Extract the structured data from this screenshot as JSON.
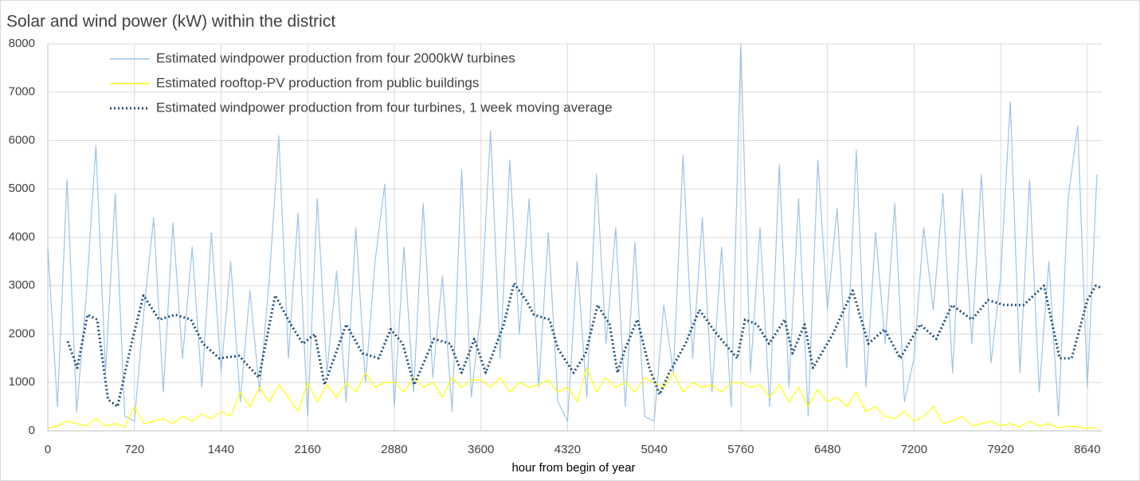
{
  "chart_data": {
    "type": "line",
    "title": "Solar and wind power (kW) within the district",
    "x_label": "hour from begin of year",
    "xlim": [
      0,
      8760
    ],
    "xticks": [
      0,
      720,
      1440,
      2160,
      2880,
      3600,
      4320,
      5040,
      5760,
      6480,
      7200,
      7920,
      8640
    ],
    "ylim": [
      0,
      8000
    ],
    "yticks": [
      0,
      1000,
      2000,
      3000,
      4000,
      5000,
      6000,
      7000,
      8000
    ],
    "grid": true,
    "legend": "upper left",
    "series": [
      {
        "name": "Estimated windpower production from four 2000kW turbines",
        "color": "#9dc3e6",
        "style": "solid",
        "x": [
          0,
          80,
          160,
          240,
          320,
          400,
          480,
          560,
          640,
          720,
          800,
          880,
          960,
          1040,
          1120,
          1200,
          1280,
          1360,
          1440,
          1520,
          1600,
          1680,
          1760,
          1840,
          1920,
          2000,
          2080,
          2160,
          2240,
          2320,
          2400,
          2480,
          2560,
          2640,
          2720,
          2800,
          2880,
          2960,
          3040,
          3120,
          3200,
          3280,
          3360,
          3440,
          3520,
          3600,
          3680,
          3760,
          3840,
          3920,
          4000,
          4080,
          4160,
          4240,
          4320,
          4400,
          4480,
          4560,
          4640,
          4720,
          4800,
          4880,
          4960,
          5040,
          5120,
          5200,
          5280,
          5360,
          5440,
          5520,
          5600,
          5680,
          5760,
          5840,
          5920,
          6000,
          6080,
          6160,
          6240,
          6320,
          6400,
          6480,
          6560,
          6640,
          6720,
          6800,
          6880,
          6960,
          7040,
          7120,
          7200,
          7280,
          7360,
          7440,
          7520,
          7600,
          7680,
          7760,
          7840,
          7920,
          8000,
          8080,
          8160,
          8240,
          8320,
          8400,
          8480,
          8560,
          8640,
          8720
        ],
        "values": [
          3800,
          500,
          5200,
          400,
          2800,
          5900,
          1200,
          4900,
          300,
          200,
          2500,
          4400,
          800,
          4300,
          1500,
          3800,
          900,
          4100,
          1200,
          3500,
          600,
          2900,
          800,
          3100,
          6100,
          1500,
          4500,
          300,
          4800,
          1200,
          3300,
          600,
          4200,
          1000,
          3500,
          5100,
          500,
          3800,
          800,
          4700,
          1100,
          3200,
          400,
          5400,
          700,
          2500,
          6200,
          1500,
          5600,
          2000,
          4800,
          900,
          4100,
          600,
          200,
          3500,
          700,
          5300,
          1800,
          4200,
          500,
          3900,
          300,
          200,
          2600,
          1200,
          5700,
          1500,
          4400,
          800,
          3800,
          500,
          8000,
          1200,
          4200,
          500,
          5500,
          900,
          4800,
          300,
          5600,
          2500,
          4600,
          1300,
          5800,
          900,
          4100,
          1800,
          4700,
          600,
          1500,
          4200,
          2500,
          4900,
          1200,
          5000,
          1800,
          5300,
          1400,
          3200,
          6800,
          1200,
          5200,
          800,
          3500,
          300,
          4800,
          6300,
          900,
          5300
        ]
      },
      {
        "name": "Estimated rooftop-PV production from public buildings",
        "color": "#ffff00",
        "style": "solid",
        "x": [
          0,
          80,
          160,
          240,
          320,
          400,
          480,
          560,
          640,
          720,
          800,
          880,
          960,
          1040,
          1120,
          1200,
          1280,
          1360,
          1440,
          1520,
          1600,
          1680,
          1760,
          1840,
          1920,
          2000,
          2080,
          2160,
          2240,
          2320,
          2400,
          2480,
          2560,
          2640,
          2720,
          2800,
          2880,
          2960,
          3040,
          3120,
          3200,
          3280,
          3360,
          3440,
          3520,
          3600,
          3680,
          3760,
          3840,
          3920,
          4000,
          4080,
          4160,
          4240,
          4320,
          4400,
          4480,
          4560,
          4640,
          4720,
          4800,
          4880,
          4960,
          5040,
          5120,
          5200,
          5280,
          5360,
          5440,
          5520,
          5600,
          5680,
          5760,
          5840,
          5920,
          6000,
          6080,
          6160,
          6240,
          6320,
          6400,
          6480,
          6560,
          6640,
          6720,
          6800,
          6880,
          6960,
          7040,
          7120,
          7200,
          7280,
          7360,
          7440,
          7520,
          7600,
          7680,
          7760,
          7840,
          7920,
          8000,
          8080,
          8160,
          8240,
          8320,
          8400,
          8480,
          8560,
          8640,
          8720
        ],
        "values": [
          50,
          100,
          200,
          150,
          100,
          250,
          100,
          150,
          80,
          500,
          150,
          200,
          250,
          150,
          300,
          200,
          350,
          250,
          400,
          300,
          800,
          500,
          900,
          600,
          950,
          700,
          400,
          1000,
          600,
          950,
          700,
          1000,
          800,
          1200,
          900,
          1000,
          1000,
          800,
          1100,
          900,
          1000,
          700,
          1100,
          900,
          1050,
          1050,
          900,
          1100,
          800,
          1000,
          900,
          950,
          1050,
          800,
          900,
          600,
          1300,
          800,
          1100,
          900,
          1000,
          800,
          1100,
          1000,
          900,
          1200,
          800,
          1000,
          900,
          950,
          800,
          1000,
          1000,
          900,
          950,
          700,
          950,
          600,
          900,
          500,
          850,
          600,
          700,
          500,
          800,
          400,
          500,
          300,
          250,
          400,
          200,
          300,
          500,
          150,
          200,
          300,
          100,
          150,
          200,
          100,
          150,
          80,
          200,
          100,
          150,
          60,
          100,
          80,
          50,
          60
        ]
      },
      {
        "name": "Estimated windpower production from four turbines, 1 week moving average",
        "color": "#1f4e79",
        "style": "dotted",
        "x": [
          165,
          245,
          330,
          410,
          500,
          580,
          695,
          795,
          925,
          1060,
          1190,
          1290,
          1425,
          1590,
          1755,
          1890,
          2020,
          2120,
          2220,
          2300,
          2480,
          2615,
          2750,
          2850,
          2950,
          3045,
          3210,
          3345,
          3440,
          3545,
          3640,
          3790,
          3875,
          3975,
          4040,
          4170,
          4240,
          4370,
          4470,
          4570,
          4670,
          4735,
          4800,
          4900,
          5000,
          5085,
          5165,
          5300,
          5415,
          5560,
          5730,
          5795,
          5895,
          5995,
          6125,
          6190,
          6290,
          6360,
          6525,
          6690,
          6820,
          6955,
          7085,
          7250,
          7385,
          7515,
          7680,
          7815,
          7950,
          8110,
          8280,
          8410,
          8510,
          8640,
          8710,
          8760
        ],
        "values": [
          1850,
          1300,
          2400,
          2300,
          650,
          500,
          1800,
          2800,
          2300,
          2400,
          2300,
          1800,
          1500,
          1550,
          1100,
          2800,
          2200,
          1800,
          2000,
          950,
          2200,
          1600,
          1500,
          2100,
          1800,
          950,
          1900,
          1800,
          1200,
          1900,
          1200,
          2200,
          3050,
          2700,
          2400,
          2300,
          1700,
          1200,
          1600,
          2600,
          2200,
          1200,
          1700,
          2300,
          1300,
          750,
          1200,
          1800,
          2500,
          2000,
          1500,
          2300,
          2200,
          1800,
          2300,
          1600,
          2200,
          1300,
          2000,
          2900,
          1800,
          2100,
          1500,
          2200,
          1900,
          2600,
          2300,
          2700,
          2600,
          2600,
          3000,
          1500,
          1500,
          2700,
          3000,
          2950
        ]
      }
    ]
  }
}
